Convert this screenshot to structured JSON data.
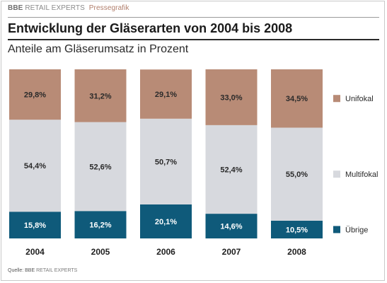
{
  "header": {
    "brand_bold": "BBE",
    "brand_name": "RETAIL EXPERTS",
    "brand_tag": "Pressegrafik",
    "title": "Entwicklung der Gläserarten von 2004 bis 2008",
    "subtitle": "Anteile am Gläserumsatz in Prozent"
  },
  "footer": {
    "source_label": "Quelle: BBE",
    "source_name": "RETAIL EXPERTS"
  },
  "colors": {
    "Unifokal": "#b88b76",
    "Multifokal": "#d7d9de",
    "Übrige": "#0f5a7a"
  },
  "chart_data": {
    "type": "bar",
    "stacked": true,
    "title": "Entwicklung der Gläserarten von 2004 bis 2008",
    "subtitle": "Anteile am Gläserumsatz in Prozent",
    "categories": [
      "2004",
      "2005",
      "2006",
      "2007",
      "2008"
    ],
    "series": [
      {
        "name": "Übrige",
        "values": [
          15.8,
          16.2,
          20.1,
          14.6,
          10.5
        ],
        "labels": [
          "15,8%",
          "16,2%",
          "20,1%",
          "14,6%",
          "10,5%"
        ]
      },
      {
        "name": "Multifokal",
        "values": [
          54.4,
          52.6,
          50.7,
          52.4,
          55.0
        ],
        "labels": [
          "54,4%",
          "52,6%",
          "50,7%",
          "52,4%",
          "55,0%"
        ]
      },
      {
        "name": "Unifokal",
        "values": [
          29.8,
          31.2,
          29.1,
          33.0,
          34.5
        ],
        "labels": [
          "29,8%",
          "31,2%",
          "29,1%",
          "33,0%",
          "34,5%"
        ]
      }
    ],
    "legend": [
      "Unifokal",
      "Multifokal",
      "Übrige"
    ],
    "legend_position": "right",
    "ylim": [
      0,
      100
    ],
    "grid": false
  }
}
